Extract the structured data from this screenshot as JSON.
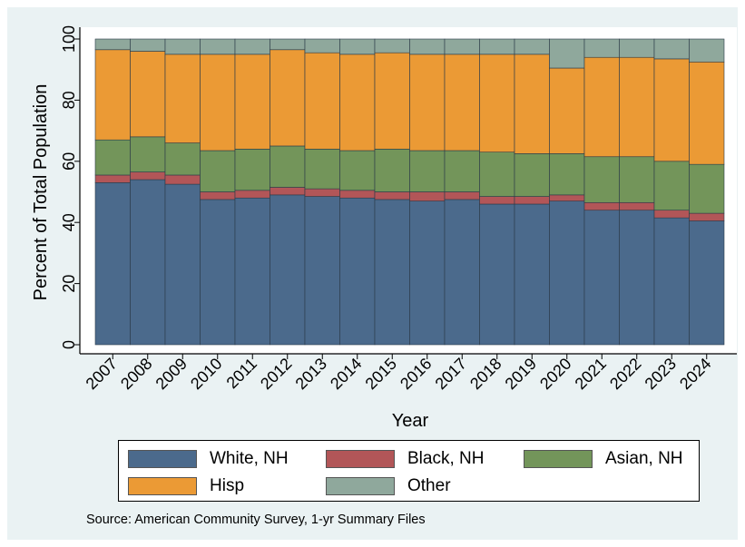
{
  "chart_data": {
    "type": "bar",
    "stacked": true,
    "xlabel": "Year",
    "ylabel": "Percent of Total Population",
    "ylim": [
      0,
      100
    ],
    "yticks": [
      0,
      20,
      40,
      60,
      80,
      100
    ],
    "categories": [
      "2007",
      "2008",
      "2009",
      "2010",
      "2011",
      "2012",
      "2013",
      "2014",
      "2015",
      "2016",
      "2017",
      "2018",
      "2019",
      "2020",
      "2021",
      "2022",
      "2023",
      "2024"
    ],
    "series": [
      {
        "name": "White, NH",
        "color": "#4b6a8c",
        "values": [
          53.0,
          54.0,
          52.5,
          47.5,
          48.0,
          49.0,
          48.5,
          48.0,
          47.5,
          47.0,
          47.5,
          46.0,
          46.0,
          47.0,
          44.0,
          44.0,
          41.5,
          40.5
        ]
      },
      {
        "name": "Black, NH",
        "color": "#b25658",
        "values": [
          2.5,
          2.5,
          3.0,
          2.5,
          2.5,
          2.5,
          2.5,
          2.5,
          2.5,
          3.0,
          2.5,
          2.5,
          2.5,
          2.0,
          2.5,
          2.5,
          2.5,
          2.5
        ]
      },
      {
        "name": "Asian, NH",
        "color": "#73955a",
        "values": [
          11.5,
          11.5,
          10.5,
          13.5,
          13.5,
          13.5,
          13.0,
          13.0,
          14.0,
          13.5,
          13.5,
          14.5,
          14.0,
          13.5,
          15.0,
          15.0,
          16.0,
          16.0
        ]
      },
      {
        "name": "Hisp",
        "color": "#eb9a35",
        "values": [
          29.5,
          28.0,
          29.0,
          31.5,
          31.0,
          31.5,
          31.5,
          31.5,
          31.5,
          31.5,
          31.5,
          32.0,
          32.5,
          28.0,
          32.5,
          32.5,
          33.5,
          33.5
        ]
      },
      {
        "name": "Other",
        "color": "#8fa89c",
        "values": [
          3.5,
          4.0,
          5.0,
          5.0,
          5.0,
          3.5,
          4.5,
          5.0,
          4.5,
          5.0,
          5.0,
          5.0,
          5.0,
          9.5,
          6.0,
          6.0,
          6.5,
          7.5
        ]
      }
    ],
    "legend_position": "bottom",
    "grid": false,
    "source": "Source: American Community Survey, 1-yr Summary Files"
  }
}
